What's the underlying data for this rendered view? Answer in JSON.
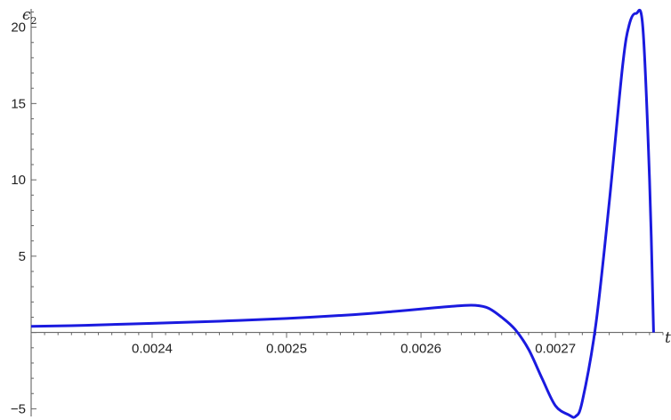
{
  "chart_data": {
    "type": "line",
    "title": "",
    "xlabel": "t",
    "ylabel": "ϵ",
    "ylabel_subscript": "2",
    "xlim": [
      0.00231,
      0.00278
    ],
    "ylim": [
      -5.5,
      21.2
    ],
    "grid": false,
    "legend": "none",
    "x_ticks": [
      0.0024,
      0.0025,
      0.0026,
      0.0027
    ],
    "x_tick_labels": [
      "0.0024",
      "0.0025",
      "0.0026",
      "0.0027"
    ],
    "y_ticks": [
      -5,
      5,
      10,
      15,
      20
    ],
    "y_tick_labels": [
      "−5",
      "5",
      "10",
      "15",
      "20"
    ],
    "series": [
      {
        "color": "#1a1adf",
        "x": [
          0.00231,
          0.00235,
          0.0024,
          0.00245,
          0.0025,
          0.00255,
          0.00258,
          0.00261,
          0.00263,
          0.00264,
          0.00265,
          0.00266,
          0.00267,
          0.00268,
          0.00269,
          0.0027,
          0.00271,
          0.002715,
          0.00272,
          0.00273,
          0.00274,
          0.00275,
          0.002755,
          0.00276,
          0.002765,
          0.00277,
          0.002773
        ],
        "y": [
          0.4,
          0.47,
          0.6,
          0.74,
          0.92,
          1.17,
          1.38,
          1.62,
          1.76,
          1.78,
          1.6,
          1.0,
          0.2,
          -1.1,
          -3.0,
          -4.8,
          -5.4,
          -5.5,
          -4.5,
          0.5,
          8.5,
          17.5,
          20.2,
          20.9,
          20.0,
          10.0,
          0.0
        ]
      }
    ]
  }
}
